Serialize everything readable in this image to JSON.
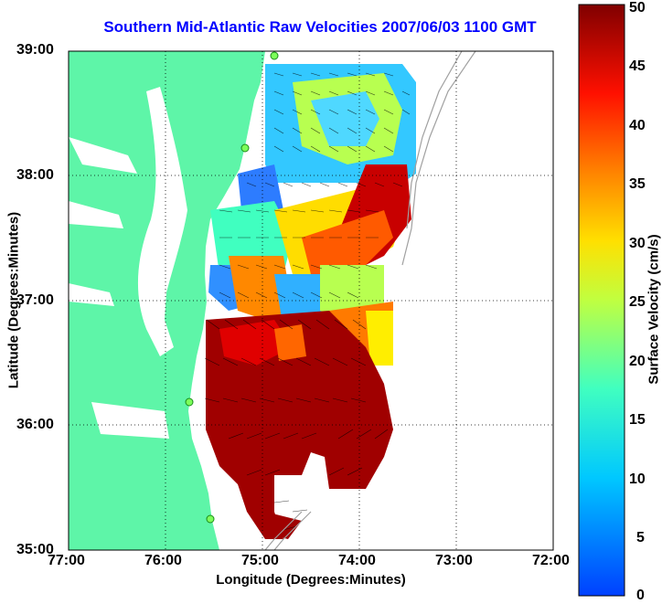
{
  "title": "Southern Mid-Atlantic Raw Velocities 2007/06/03 1100 GMT",
  "map": {
    "xlabel": "Longitude (Degrees:Minutes)",
    "ylabel": "Latitude (Degrees:Minutes)",
    "x_ticks": [
      "77:00",
      "76:00",
      "75:00",
      "74:00",
      "73:00",
      "72:00"
    ],
    "y_ticks": [
      "39:00",
      "38:00",
      "37:00",
      "36:00",
      "35:00"
    ],
    "land_color": "#5ef5a8",
    "water_color": "#ffffff",
    "grid": true
  },
  "colorbar": {
    "label": "Surface Velocity (cm/s)",
    "ticks": [
      "50",
      "45",
      "40",
      "35",
      "30",
      "25",
      "20",
      "15",
      "10",
      "5",
      "0"
    ],
    "range": [
      0,
      50
    ],
    "colormap": "jet"
  }
}
